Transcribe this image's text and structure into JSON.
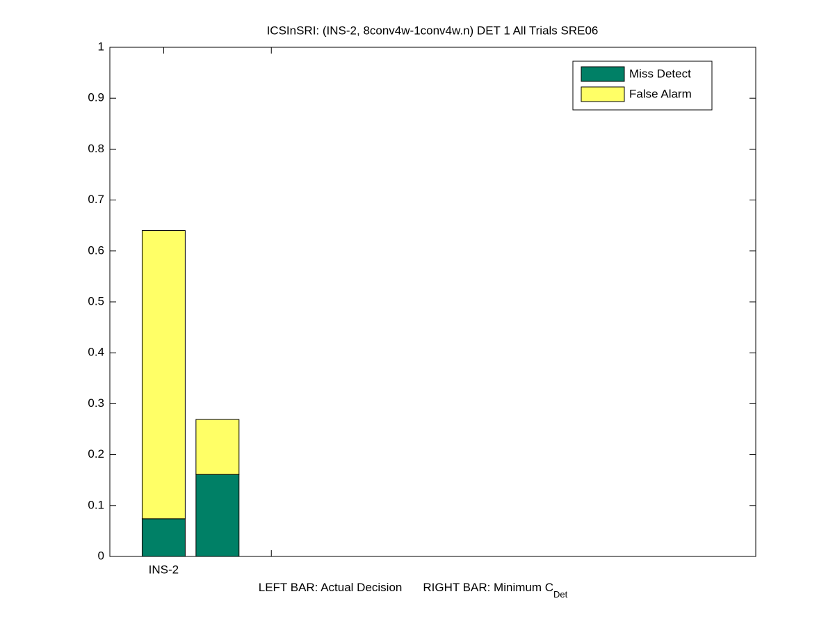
{
  "chart_data": {
    "type": "bar",
    "stacked": true,
    "title": "ICSInSRI: (INS-2, 8conv4w-1conv4w.n) DET 1 All Trials SRE06",
    "xlabel": {
      "left": "LEFT BAR: Actual Decision",
      "right": "RIGHT BAR: Minimum C",
      "subscript": "Det"
    },
    "x": [
      1,
      1.5
    ],
    "bar_width": 0.4,
    "series": [
      {
        "name": "Miss Detect",
        "color": "#008066",
        "values": [
          0.074,
          0.161
        ]
      },
      {
        "name": "False Alarm",
        "color": "#ffff66",
        "values": [
          0.566,
          0.108
        ]
      }
    ],
    "xlim": [
      0.5,
      6.5
    ],
    "xticks": [
      {
        "value": 1,
        "label": "INS-2"
      },
      {
        "value": 2,
        "label": null
      }
    ],
    "ylim": [
      0,
      1
    ],
    "yticks": [
      0,
      0.1,
      0.2,
      0.3,
      0.4,
      0.5,
      0.6,
      0.7,
      0.8,
      0.9,
      1
    ],
    "legend": "upper-right"
  }
}
